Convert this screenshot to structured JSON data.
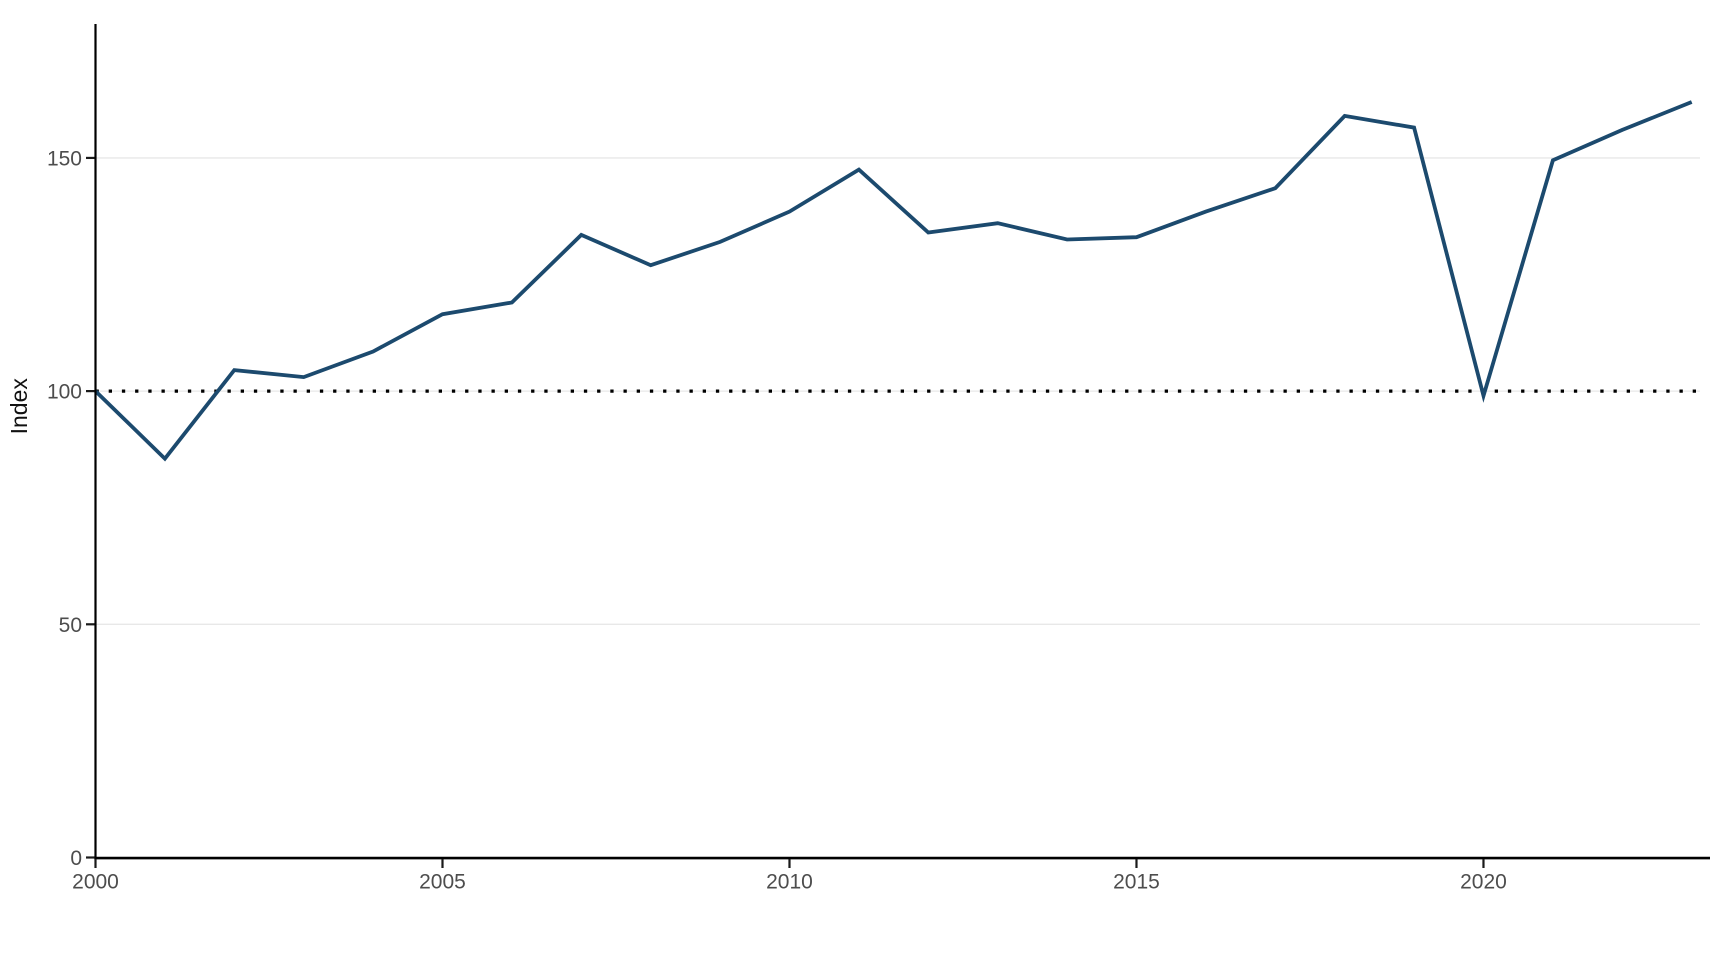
{
  "figure": {
    "background_color": "#ffffff"
  },
  "chart_data": {
    "type": "line",
    "title": "",
    "xlabel": "",
    "ylabel": "Index",
    "x": [
      2000,
      2001,
      2002,
      2003,
      2004,
      2005,
      2006,
      2007,
      2008,
      2009,
      2010,
      2011,
      2012,
      2013,
      2014,
      2015,
      2016,
      2017,
      2018,
      2019,
      2020,
      2021,
      2022,
      2023
    ],
    "series": [
      {
        "name": "Index",
        "color": "#1c4a6e",
        "values": [
          100,
          85.5,
          104.5,
          103,
          108.5,
          116.5,
          119,
          133.5,
          127,
          132,
          138.5,
          147.5,
          134,
          136,
          132.5,
          133,
          138.5,
          143.5,
          159,
          156.5,
          99,
          149.5,
          156,
          162
        ]
      }
    ],
    "x_ticks": [
      2000,
      2005,
      2010,
      2015,
      2020
    ],
    "y_ticks": [
      0,
      50,
      100,
      150
    ],
    "xlim": [
      2000,
      2023.12
    ],
    "ylim": [
      0,
      178.5
    ],
    "grid": "y-major-only",
    "legend": "none",
    "reference_line": {
      "y": 100,
      "style": "dotted",
      "color": "#000000"
    },
    "styles": {
      "line_color": "#1c4a6e",
      "grid_color": "#e8e8e8",
      "axis_color": "#000000",
      "tick_color": "#1a1a1a",
      "tick_label_color": "#4d4d4d",
      "axis_title_color": "#111111"
    }
  }
}
